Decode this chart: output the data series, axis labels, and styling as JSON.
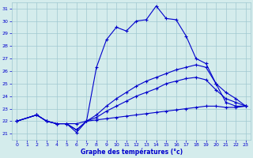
{
  "title": "Graphe des températures (°c)",
  "bg_color": "#d4ecec",
  "grid_color": "#a0c8d0",
  "line_color": "#0000cc",
  "xlim": [
    -0.5,
    23.5
  ],
  "ylim": [
    20.5,
    31.5
  ],
  "xticks": [
    0,
    1,
    2,
    3,
    4,
    5,
    6,
    7,
    8,
    9,
    10,
    11,
    12,
    13,
    14,
    15,
    16,
    17,
    18,
    19,
    20,
    21,
    22,
    23
  ],
  "yticks": [
    21,
    22,
    23,
    24,
    25,
    26,
    27,
    28,
    29,
    30,
    31
  ],
  "series": [
    {
      "x": [
        0,
        2,
        3,
        4,
        5,
        6,
        7,
        8,
        9,
        10,
        11,
        12,
        13,
        14,
        15,
        16,
        17,
        18,
        19,
        20,
        21,
        22,
        23
      ],
      "y": [
        22,
        22.5,
        22.0,
        21.8,
        21.8,
        21.1,
        22.0,
        26.3,
        28.5,
        29.5,
        29.2,
        30.0,
        30.1,
        31.2,
        30.2,
        30.1,
        28.8,
        27.0,
        26.6,
        25.0,
        23.5,
        23.2,
        23.2
      ]
    },
    {
      "x": [
        0,
        2,
        3,
        4,
        5,
        6,
        7,
        8,
        9,
        10,
        11,
        12,
        13,
        14,
        15,
        16,
        17,
        18,
        19,
        20,
        21,
        22,
        23
      ],
      "y": [
        22,
        22.5,
        22.0,
        21.8,
        21.8,
        21.3,
        22.0,
        22.5,
        23.2,
        23.8,
        24.3,
        24.8,
        25.2,
        25.5,
        25.8,
        26.1,
        26.3,
        26.5,
        26.3,
        25.0,
        24.3,
        23.8,
        23.2
      ]
    },
    {
      "x": [
        0,
        2,
        3,
        4,
        5,
        6,
        7,
        8,
        9,
        10,
        11,
        12,
        13,
        14,
        15,
        16,
        17,
        18,
        19,
        20,
        21,
        22,
        23
      ],
      "y": [
        22,
        22.5,
        22.0,
        21.8,
        21.8,
        21.3,
        22.0,
        22.3,
        22.8,
        23.2,
        23.6,
        24.0,
        24.3,
        24.6,
        25.0,
        25.2,
        25.4,
        25.5,
        25.3,
        24.5,
        23.8,
        23.5,
        23.2
      ]
    },
    {
      "x": [
        0,
        2,
        3,
        4,
        5,
        6,
        7,
        8,
        9,
        10,
        11,
        12,
        13,
        14,
        15,
        16,
        17,
        18,
        19,
        20,
        21,
        22,
        23
      ],
      "y": [
        22,
        22.5,
        22.0,
        21.8,
        21.8,
        21.8,
        22.0,
        22.1,
        22.2,
        22.3,
        22.4,
        22.5,
        22.6,
        22.7,
        22.8,
        22.9,
        23.0,
        23.1,
        23.2,
        23.2,
        23.1,
        23.1,
        23.2
      ]
    }
  ]
}
